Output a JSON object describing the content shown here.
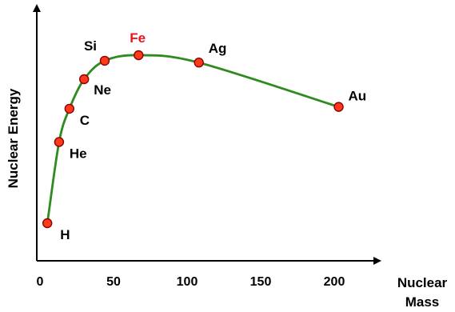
{
  "chart_data": {
    "type": "line",
    "title": "",
    "xlabel": "Nuclear Mass",
    "ylabel": "Nuclear Energy",
    "x_ticks": [
      0,
      50,
      100,
      150,
      200
    ],
    "xlim": [
      0,
      232
    ],
    "y_ticks": [],
    "y_tick_labels": "none",
    "grid": false,
    "legend": "none",
    "curve_color": "#2e8b1e",
    "marker_color": "#ff3a1a",
    "marker_edge_color": "#8b0000",
    "highlight_color": "#e8141e",
    "points": [
      {
        "label": "H",
        "x": 5,
        "y": 0.0
      },
      {
        "label": "He",
        "x": 13,
        "y": 0.44
      },
      {
        "label": "C",
        "x": 20,
        "y": 0.62
      },
      {
        "label": "Ne",
        "x": 30,
        "y": 0.78
      },
      {
        "label": "Si",
        "x": 44,
        "y": 0.88
      },
      {
        "label": "Fe",
        "x": 67,
        "y": 0.91,
        "highlight": true
      },
      {
        "label": "Ag",
        "x": 108,
        "y": 0.87
      },
      {
        "label": "Au",
        "x": 203,
        "y": 0.63
      }
    ]
  }
}
